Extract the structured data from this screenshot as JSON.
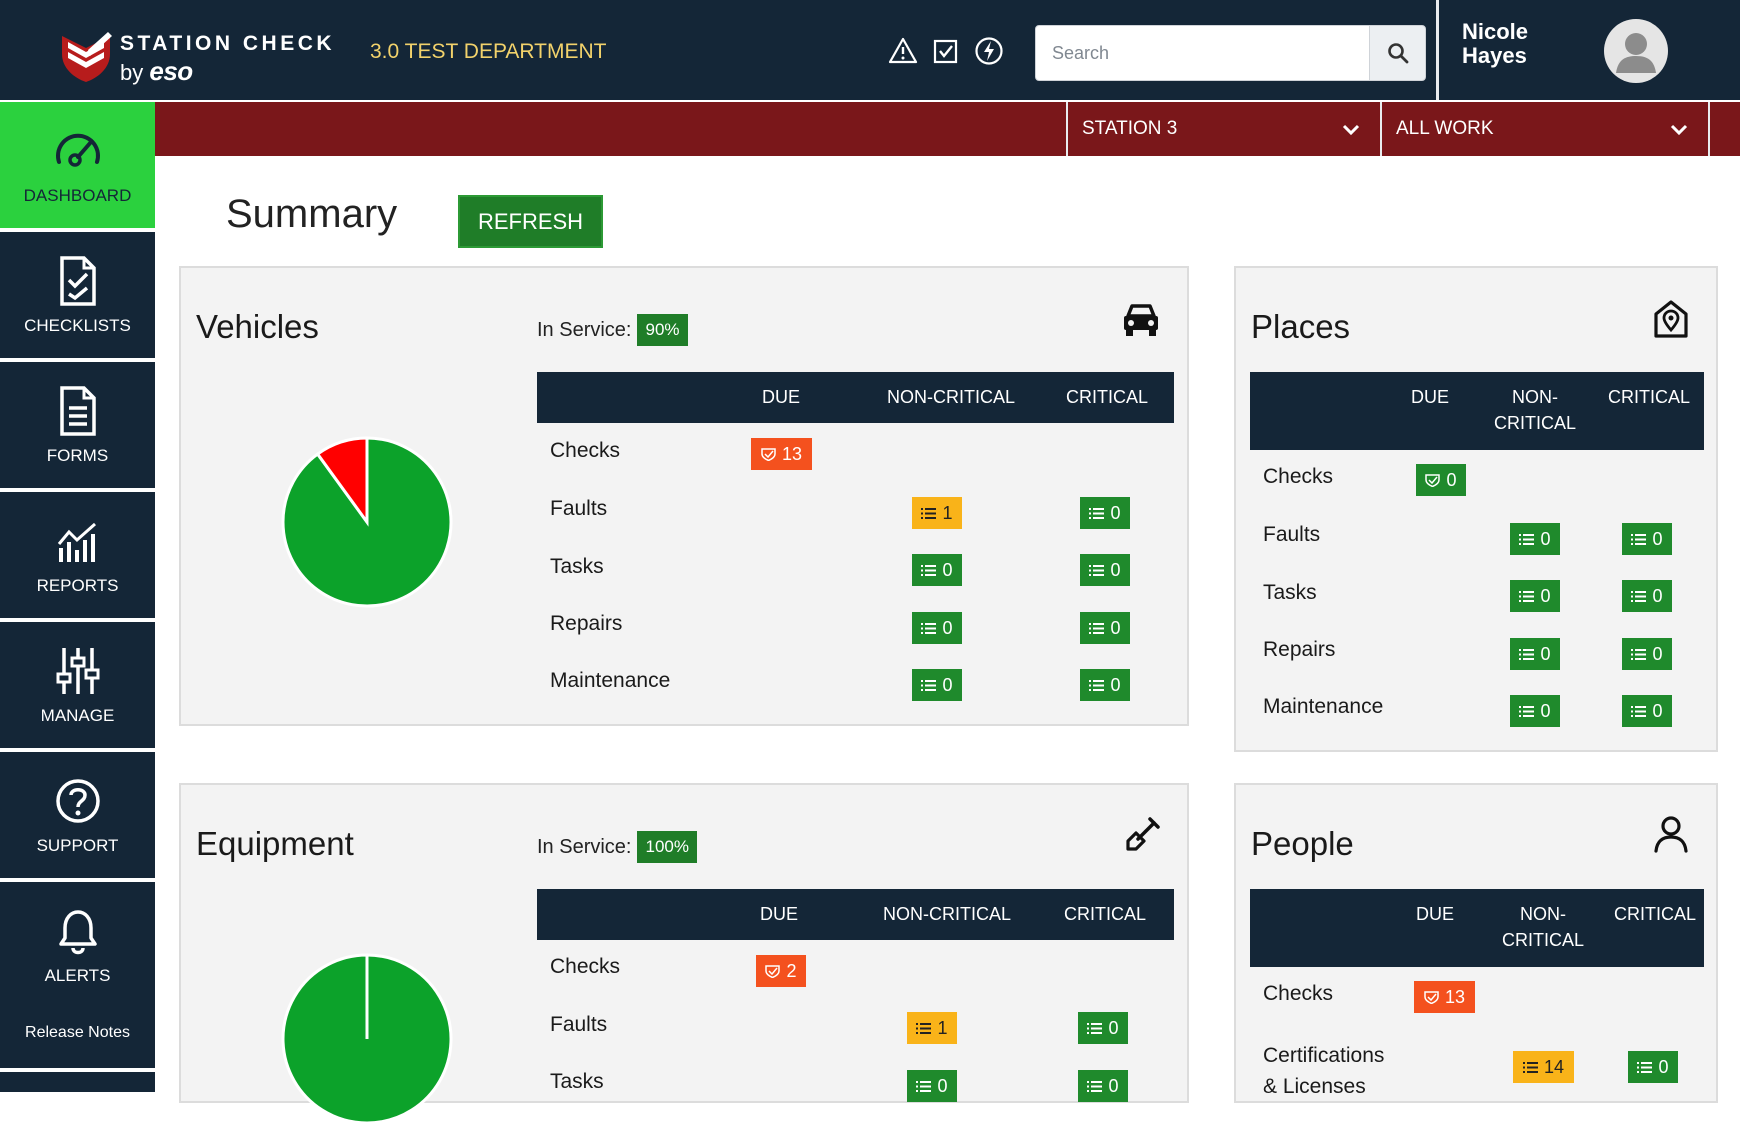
{
  "header": {
    "brand_line1": "STATION CHECK",
    "brand_by": "by",
    "brand_eso": "eso",
    "department": "3.0 TEST DEPARTMENT",
    "icons": [
      "warning-icon",
      "checkbox-icon",
      "lightning-icon"
    ],
    "search_placeholder": "Search",
    "user_name": "Nicole Hayes"
  },
  "filters": {
    "station": "STATION 3",
    "work": "ALL WORK"
  },
  "sidebar": {
    "items": [
      {
        "label": "DASHBOARD",
        "icon": "gauge-icon",
        "active": true
      },
      {
        "label": "CHECKLISTS",
        "icon": "checklist-icon"
      },
      {
        "label": "FORMS",
        "icon": "form-icon"
      },
      {
        "label": "REPORTS",
        "icon": "chart-icon"
      },
      {
        "label": "MANAGE",
        "icon": "sliders-icon"
      },
      {
        "label": "SUPPORT",
        "icon": "help-icon"
      },
      {
        "label": "ALERTS",
        "icon": "bell-icon"
      }
    ],
    "release_notes": "Release Notes"
  },
  "summary": {
    "title": "Summary",
    "refresh_label": "REFRESH"
  },
  "colors": {
    "navy": "#142637",
    "active_green": "#2bd13e",
    "badge_green": "#1f8a2c",
    "badge_orange": "#f4511e",
    "badge_yellow": "#f9b319",
    "pie_green": "#0ca22a",
    "pie_red": "#ff0000",
    "redbar": "#7a171a"
  },
  "vehicles": {
    "title": "Vehicles",
    "in_service_label": "In Service:",
    "in_service_pct": "90%",
    "in_service_fraction": 0.9,
    "icon": "car-icon",
    "columns": [
      "DUE",
      "NON-CRITICAL",
      "CRITICAL"
    ],
    "rows": [
      {
        "label": "Checks",
        "due": "13"
      },
      {
        "label": "Faults",
        "noncritical": "1",
        "critical": "0"
      },
      {
        "label": "Tasks",
        "noncritical": "0",
        "critical": "0"
      },
      {
        "label": "Repairs",
        "noncritical": "0",
        "critical": "0"
      },
      {
        "label": "Maintenance",
        "noncritical": "0",
        "critical": "0"
      }
    ]
  },
  "equipment": {
    "title": "Equipment",
    "in_service_label": "In Service:",
    "in_service_pct": "100%",
    "in_service_fraction": 1.0,
    "icon": "shovel-icon",
    "columns": [
      "DUE",
      "NON-CRITICAL",
      "CRITICAL"
    ],
    "rows": [
      {
        "label": "Checks",
        "due": "2"
      },
      {
        "label": "Faults",
        "noncritical": "1",
        "critical": "0"
      },
      {
        "label": "Tasks",
        "noncritical": "0",
        "critical": "0"
      }
    ]
  },
  "places": {
    "title": "Places",
    "icon": "map-pin-icon",
    "columns": [
      "DUE",
      "NON-\nCRITICAL",
      "CRITICAL"
    ],
    "col_due": "DUE",
    "col_noncrit_1": "NON-",
    "col_noncrit_2": "CRITICAL",
    "col_crit": "CRITICAL",
    "rows": [
      {
        "label": "Checks",
        "due": "0"
      },
      {
        "label": "Faults",
        "noncritical": "0",
        "critical": "0"
      },
      {
        "label": "Tasks",
        "noncritical": "0",
        "critical": "0"
      },
      {
        "label": "Repairs",
        "noncritical": "0",
        "critical": "0"
      },
      {
        "label": "Maintenance",
        "noncritical": "0",
        "critical": "0"
      }
    ]
  },
  "people": {
    "title": "People",
    "icon": "person-icon",
    "col_due": "DUE",
    "col_noncrit_1": "NON-",
    "col_noncrit_2": "CRITICAL",
    "col_crit": "CRITICAL",
    "rows": [
      {
        "label": "Checks",
        "due": "13"
      },
      {
        "label": "Certifications",
        "label2": "& Licenses",
        "noncritical": "14",
        "critical": "0"
      }
    ]
  }
}
